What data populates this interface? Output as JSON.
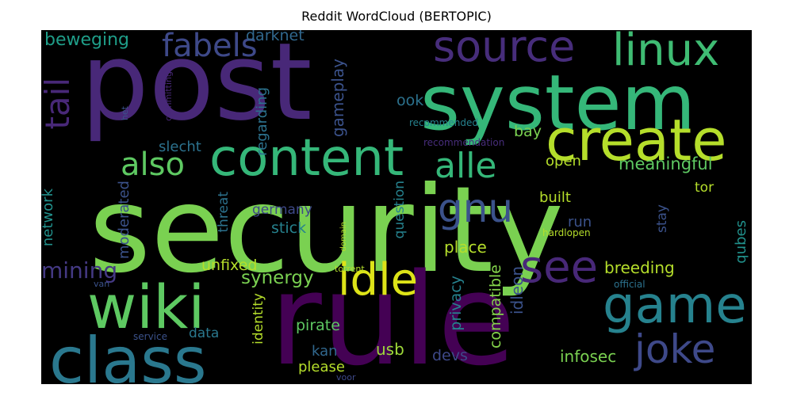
{
  "chart_data": {
    "type": "wordcloud",
    "title": "Reddit WordCloud (BERTOPIC)",
    "background": "#000000",
    "colormap": "viridis",
    "words": [
      {
        "text": "security",
        "weight": 1.0,
        "color": "#7ad151"
      },
      {
        "text": "post",
        "weight": 0.88,
        "color": "#482878"
      },
      {
        "text": "rule",
        "weight": 0.86,
        "color": "#440154"
      },
      {
        "text": "system",
        "weight": 0.62,
        "color": "#35b779"
      },
      {
        "text": "class",
        "weight": 0.5,
        "color": "#2a788e"
      },
      {
        "text": "content",
        "weight": 0.4,
        "color": "#35b779"
      },
      {
        "text": "create",
        "weight": 0.44,
        "color": "#b5de2b"
      },
      {
        "text": "wiki",
        "weight": 0.48,
        "color": "#5ec962"
      },
      {
        "text": "game",
        "weight": 0.4,
        "color": "#26828e"
      },
      {
        "text": "source",
        "weight": 0.34,
        "color": "#472d7b"
      },
      {
        "text": "linux",
        "weight": 0.3,
        "color": "#3fbc73"
      },
      {
        "text": "idle",
        "weight": 0.34,
        "color": "#dde318"
      },
      {
        "text": "see",
        "weight": 0.34,
        "color": "#482878"
      },
      {
        "text": "joke",
        "weight": 0.32,
        "color": "#3e4989"
      },
      {
        "text": "gnu",
        "weight": 0.3,
        "color": "#3b528b"
      },
      {
        "text": "alle",
        "weight": 0.25,
        "color": "#35b779"
      },
      {
        "text": "also",
        "weight": 0.22,
        "color": "#5ec962"
      },
      {
        "text": "fabels",
        "weight": 0.24,
        "color": "#3e4989"
      },
      {
        "text": "tail",
        "weight": 0.26,
        "color": "#482878"
      },
      {
        "text": "mining",
        "weight": 0.18,
        "color": "#443983"
      },
      {
        "text": "synergy",
        "weight": 0.13,
        "color": "#7ad151"
      },
      {
        "text": "meaningful",
        "weight": 0.13,
        "color": "#5ec962"
      },
      {
        "text": "beweging",
        "weight": 0.14,
        "color": "#1f9e89"
      },
      {
        "text": "darknet",
        "weight": 0.11,
        "color": "#31688e"
      },
      {
        "text": "gameplay",
        "weight": 0.12,
        "color": "#3b528b"
      },
      {
        "text": "regarding",
        "weight": 0.1,
        "color": "#2c728e"
      },
      {
        "text": "slecht",
        "weight": 0.11,
        "color": "#2c728e"
      },
      {
        "text": "moderated",
        "weight": 0.11,
        "color": "#3b528b"
      },
      {
        "text": "network",
        "weight": 0.11,
        "color": "#21918c"
      },
      {
        "text": "threat",
        "weight": 0.1,
        "color": "#2c728e"
      },
      {
        "text": "germany",
        "weight": 0.1,
        "color": "#3e4989"
      },
      {
        "text": "stick",
        "weight": 0.11,
        "color": "#26828e"
      },
      {
        "text": "unfixed",
        "weight": 0.11,
        "color": "#b5de2b"
      },
      {
        "text": "data",
        "weight": 0.1,
        "color": "#2a788e"
      },
      {
        "text": "identity",
        "weight": 0.1,
        "color": "#b5de2b"
      },
      {
        "text": "question",
        "weight": 0.1,
        "color": "#26828e"
      },
      {
        "text": "pirate",
        "weight": 0.11,
        "color": "#5ec962"
      },
      {
        "text": "please",
        "weight": 0.11,
        "color": "#b5de2b"
      },
      {
        "text": "kan",
        "weight": 0.11,
        "color": "#31688e"
      },
      {
        "text": "usb",
        "weight": 0.11,
        "color": "#9fda3a"
      },
      {
        "text": "place",
        "weight": 0.11,
        "color": "#b5de2b"
      },
      {
        "text": "privacy",
        "weight": 0.11,
        "color": "#26828e"
      },
      {
        "text": "devs",
        "weight": 0.11,
        "color": "#3e4989"
      },
      {
        "text": "compatible",
        "weight": 0.11,
        "color": "#84d44b"
      },
      {
        "text": "idleon",
        "weight": 0.12,
        "color": "#3b528b"
      },
      {
        "text": "ook",
        "weight": 0.11,
        "color": "#2c728e"
      },
      {
        "text": "bay",
        "weight": 0.11,
        "color": "#7ad151"
      },
      {
        "text": "open",
        "weight": 0.11,
        "color": "#b5de2b"
      },
      {
        "text": "built",
        "weight": 0.11,
        "color": "#b5de2b"
      },
      {
        "text": "run",
        "weight": 0.11,
        "color": "#3b528b"
      },
      {
        "text": "breeding",
        "weight": 0.12,
        "color": "#b5de2b"
      },
      {
        "text": "infosec",
        "weight": 0.12,
        "color": "#7ad151"
      },
      {
        "text": "tor",
        "weight": 0.1,
        "color": "#b5de2b"
      },
      {
        "text": "stay",
        "weight": 0.1,
        "color": "#3b528b"
      },
      {
        "text": "qubes",
        "weight": 0.1,
        "color": "#21918c"
      },
      {
        "text": "official",
        "weight": 0.07,
        "color": "#2c728e"
      },
      {
        "text": "hardlopen",
        "weight": 0.07,
        "color": "#b5de2b"
      },
      {
        "text": "recommended",
        "weight": 0.07,
        "color": "#26828e"
      },
      {
        "text": "recommendation",
        "weight": 0.07,
        "color": "#472d7b"
      },
      {
        "text": "committing",
        "weight": 0.06,
        "color": "#482878"
      },
      {
        "text": "het",
        "weight": 0.06,
        "color": "#3b528b"
      },
      {
        "text": "van",
        "weight": 0.06,
        "color": "#3b528b"
      },
      {
        "text": "domain",
        "weight": 0.06,
        "color": "#b5de2b"
      },
      {
        "text": "torrent",
        "weight": 0.06,
        "color": "#b5de2b"
      },
      {
        "text": "service",
        "weight": 0.06,
        "color": "#3b528b"
      },
      {
        "text": "voor",
        "weight": 0.06,
        "color": "#3e4989"
      }
    ]
  }
}
